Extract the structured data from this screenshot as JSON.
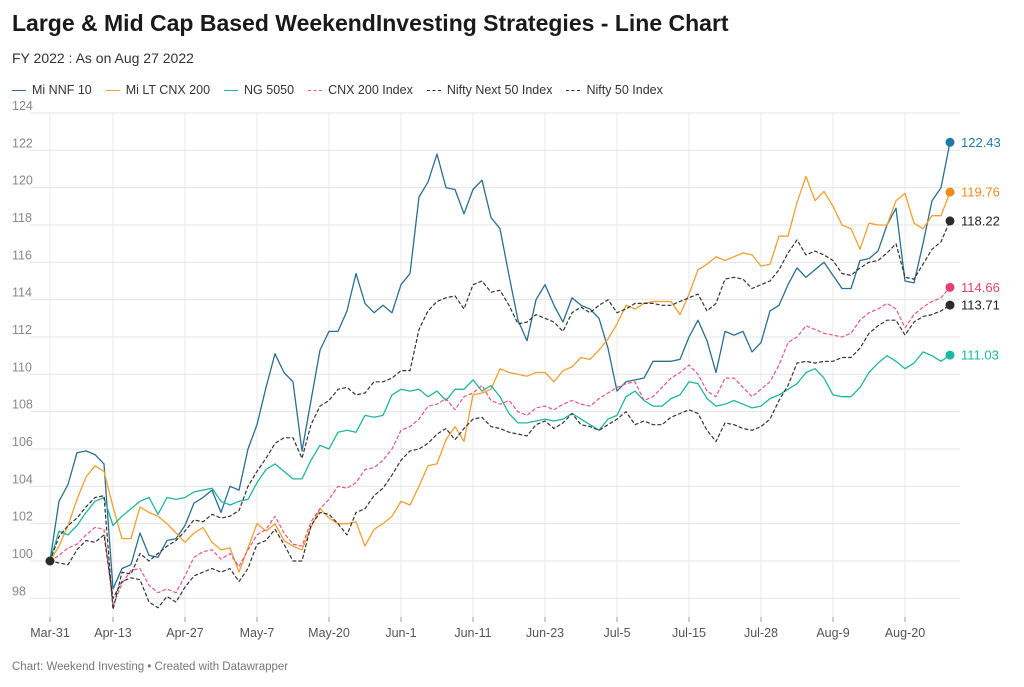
{
  "chart_data": {
    "type": "line",
    "title": "Large & Mid Cap Based WeekendInvesting Strategies - Line Chart",
    "subtitle": "FY 2022 : As on Aug 27 2022",
    "footer": "Chart: Weekend Investing • Created with Datawrapper",
    "x_tick_labels": [
      "Mar-31",
      "Apr-13",
      "Apr-27",
      "May-7",
      "May-20",
      "Jun-1",
      "Jun-11",
      "Jun-23",
      "Jul-5",
      "Jul-15",
      "Jul-28",
      "Aug-9",
      "Aug-20"
    ],
    "x_tick_index": [
      0,
      7,
      15,
      23,
      31,
      39,
      47,
      55,
      63,
      71,
      79,
      87,
      95
    ],
    "ylim": [
      97,
      124
    ],
    "y_ticks": [
      98,
      100,
      102,
      104,
      106,
      108,
      110,
      112,
      114,
      116,
      118,
      120,
      122,
      124
    ],
    "grid": true,
    "legend_position": "top-left",
    "series": [
      {
        "name": "Mi NNF 10",
        "color": "#2a6e93",
        "dashed": false,
        "end_label": "122.43",
        "end_dot_color": "#1f7aa8",
        "values": [
          100,
          103.2,
          104.1,
          105.8,
          105.9,
          105.7,
          105.2,
          98.5,
          99.6,
          99.8,
          101.5,
          100.3,
          100.2,
          101.1,
          101.2,
          101.9,
          103.1,
          103.4,
          103.8,
          102.6,
          104.0,
          103.8,
          106.0,
          107.3,
          109.3,
          111.1,
          110.1,
          109.6,
          105.9,
          108.6,
          111.3,
          112.3,
          112.3,
          113.4,
          115.4,
          113.8,
          113.3,
          113.7,
          113.3,
          114.8,
          115.4,
          119.5,
          120.3,
          121.8,
          120.0,
          119.9,
          118.6,
          119.9,
          120.4,
          118.4,
          117.8,
          115.3,
          112.9,
          111.8,
          114.0,
          114.8,
          113.7,
          112.8,
          114.1,
          113.7,
          113.5,
          113.0,
          111.4,
          109.1,
          109.6,
          109.7,
          109.8,
          110.7,
          110.7,
          110.7,
          110.8,
          112.0,
          112.9,
          111.8,
          110.1,
          112.3,
          112.1,
          112.3,
          111.2,
          111.7,
          113.4,
          113.7,
          114.8,
          115.7,
          115.2,
          115.6,
          116.0,
          115.3,
          114.6,
          114.6,
          116.1,
          116.2,
          116.6,
          118.0,
          118.9,
          115.0,
          114.9,
          117.0,
          119.3,
          120.0,
          122.43
        ]
      },
      {
        "name": "Mi LT CNX 200",
        "color": "#f0a030",
        "dashed": false,
        "end_label": "119.76",
        "end_dot_color": "#f08a1c",
        "values": [
          100,
          100.8,
          101.9,
          103.3,
          104.5,
          105.1,
          104.8,
          102.9,
          101.2,
          101.2,
          102.9,
          102.6,
          102.4,
          102.0,
          101.5,
          101.0,
          101.5,
          101.8,
          101.0,
          100.6,
          100.7,
          99.4,
          100.7,
          102.0,
          101.6,
          102.0,
          101.1,
          100.8,
          100.6,
          101.8,
          102.8,
          102.3,
          102.0,
          102.0,
          102.1,
          100.8,
          101.7,
          102.0,
          102.4,
          103.2,
          103.0,
          104.0,
          105.1,
          105.2,
          106.5,
          107.2,
          106.4,
          108.9,
          109.0,
          109.2,
          110.3,
          110.1,
          110.0,
          109.9,
          110.1,
          110.1,
          109.6,
          110.2,
          110.4,
          110.9,
          110.8,
          111.3,
          111.9,
          112.7,
          113.7,
          113.5,
          113.8,
          113.9,
          113.9,
          113.9,
          113.2,
          114.3,
          115.6,
          115.9,
          116.3,
          116.1,
          116.3,
          116.5,
          116.4,
          115.8,
          115.9,
          117.4,
          117.4,
          119.2,
          120.6,
          119.3,
          119.8,
          119.0,
          118.0,
          117.8,
          116.7,
          118.1,
          118.0,
          118.0,
          119.3,
          119.7,
          118.1,
          117.8,
          118.5,
          118.5,
          119.76
        ]
      },
      {
        "name": "NG 5050",
        "color": "#1fb5a0",
        "dashed": false,
        "end_label": "111.03",
        "end_dot_color": "#16b9a4",
        "values": [
          100,
          101.6,
          101.4,
          101.9,
          102.6,
          103.2,
          103.4,
          101.9,
          102.4,
          102.8,
          103.2,
          103.4,
          102.5,
          103.4,
          103.3,
          103.4,
          103.7,
          103.8,
          103.9,
          103.2,
          103.0,
          103.2,
          103.3,
          104.2,
          104.9,
          105.2,
          104.8,
          104.4,
          104.4,
          105.4,
          106.2,
          106.0,
          106.9,
          107.0,
          106.9,
          107.8,
          107.7,
          107.8,
          108.9,
          109.2,
          109.1,
          109.2,
          108.8,
          109.1,
          108.6,
          109.2,
          109.2,
          109.7,
          109.1,
          109.4,
          108.8,
          107.9,
          107.4,
          107.4,
          107.5,
          107.6,
          107.5,
          107.6,
          107.9,
          107.6,
          107.3,
          107.0,
          107.6,
          107.8,
          108.8,
          109.1,
          108.6,
          108.3,
          108.3,
          108.7,
          108.9,
          109.6,
          109.5,
          108.7,
          108.3,
          108.4,
          108.6,
          108.4,
          108.2,
          108.3,
          108.7,
          108.9,
          109.2,
          109.5,
          110.1,
          110.3,
          109.8,
          108.9,
          108.8,
          108.8,
          109.3,
          110.1,
          110.6,
          111.0,
          110.7,
          110.3,
          110.6,
          111.2,
          111.0,
          110.7,
          111.03
        ]
      },
      {
        "name": "CNX 200 Index",
        "color": "#e8557e",
        "dashed": true,
        "end_label": "114.66",
        "end_dot_color": "#e83e6c",
        "values": [
          100,
          100.3,
          100.7,
          100.9,
          101.4,
          101.8,
          101.7,
          97.6,
          98.8,
          99.5,
          99.6,
          98.7,
          98.3,
          98.5,
          98.3,
          99.2,
          100.2,
          100.5,
          100.6,
          100.1,
          100.4,
          99.7,
          100.6,
          101.4,
          101.7,
          102.4,
          101.5,
          100.9,
          100.8,
          102.1,
          102.8,
          103.3,
          104.0,
          103.9,
          104.2,
          104.9,
          105.0,
          105.4,
          106.0,
          107.0,
          107.2,
          107.6,
          108.3,
          108.4,
          108.7,
          108.1,
          108.8,
          109.0,
          109.4,
          108.6,
          108.4,
          108.6,
          108.0,
          107.8,
          108.2,
          108.3,
          108.1,
          108.4,
          108.6,
          108.4,
          108.3,
          108.7,
          109.0,
          109.3,
          109.5,
          109.6,
          108.6,
          108.8,
          109.3,
          109.8,
          110.1,
          110.5,
          110.0,
          109.1,
          108.8,
          109.8,
          109.8,
          109.3,
          108.8,
          109.2,
          109.6,
          110.5,
          111.7,
          112.0,
          112.6,
          112.4,
          112.2,
          112.1,
          112.0,
          112.2,
          112.9,
          113.3,
          113.5,
          113.8,
          113.5,
          112.5,
          113.2,
          113.6,
          113.9,
          114.1,
          114.66
        ]
      },
      {
        "name": "Nifty Next 50 Index",
        "color": "#333333",
        "dashed": true,
        "end_label": "118.22",
        "end_dot_color": "#2b2b2b",
        "values": [
          100,
          101.3,
          101.9,
          102.3,
          102.9,
          103.4,
          103.5,
          97.4,
          99.4,
          99.3,
          100.4,
          100.0,
          100.4,
          100.8,
          101.1,
          101.6,
          102.2,
          102.1,
          102.5,
          102.3,
          102.4,
          102.7,
          104.0,
          104.8,
          105.5,
          106.3,
          106.6,
          106.6,
          105.5,
          107.3,
          108.3,
          108.6,
          109.2,
          109.3,
          108.9,
          109.0,
          109.6,
          109.6,
          109.8,
          110.2,
          110.2,
          112.4,
          113.4,
          113.9,
          114.1,
          114.2,
          113.5,
          114.8,
          115.0,
          114.4,
          114.5,
          113.7,
          112.7,
          112.8,
          113.2,
          113.0,
          112.8,
          112.3,
          113.3,
          113.6,
          113.3,
          113.7,
          114.0,
          113.3,
          113.5,
          113.8,
          113.8,
          113.8,
          113.7,
          113.7,
          113.9,
          114.1,
          114.3,
          113.4,
          113.8,
          115.1,
          115.2,
          115.1,
          114.6,
          114.8,
          115.0,
          115.6,
          116.5,
          117.2,
          116.4,
          116.6,
          116.4,
          116.1,
          115.4,
          115.3,
          115.7,
          116.0,
          116.1,
          116.5,
          117.0,
          115.2,
          115.1,
          115.9,
          116.7,
          117.1,
          118.22
        ]
      },
      {
        "name": "Nifty 50 Index",
        "color": "#333333",
        "dashed": true,
        "end_label": "113.71",
        "end_dot_color": "#2b2b2b",
        "values": [
          100,
          99.9,
          99.8,
          100.6,
          101.1,
          101.0,
          101.4,
          98.0,
          98.9,
          99.1,
          99.0,
          97.8,
          97.5,
          98.1,
          97.8,
          98.6,
          99.2,
          99.4,
          99.6,
          99.4,
          99.6,
          98.9,
          99.6,
          100.9,
          101.1,
          101.7,
          100.9,
          100.0,
          100.0,
          101.9,
          102.6,
          102.5,
          102.0,
          101.4,
          102.6,
          102.8,
          103.5,
          103.9,
          104.6,
          105.4,
          105.9,
          106.0,
          106.3,
          106.8,
          107.1,
          106.5,
          107.1,
          107.6,
          107.7,
          107.2,
          107.1,
          106.9,
          106.8,
          106.7,
          107.3,
          107.5,
          107.1,
          107.4,
          107.9,
          107.3,
          107.2,
          107.0,
          107.3,
          107.6,
          108.0,
          107.3,
          107.5,
          107.3,
          107.3,
          107.7,
          107.9,
          108.1,
          107.9,
          107.0,
          106.4,
          107.4,
          107.3,
          107.1,
          107.0,
          107.2,
          107.6,
          108.6,
          109.4,
          110.6,
          110.7,
          110.6,
          110.7,
          110.7,
          110.9,
          110.9,
          111.4,
          112.2,
          112.6,
          112.9,
          112.9,
          112.1,
          112.8,
          113.1,
          113.2,
          113.4,
          113.71
        ]
      }
    ]
  }
}
